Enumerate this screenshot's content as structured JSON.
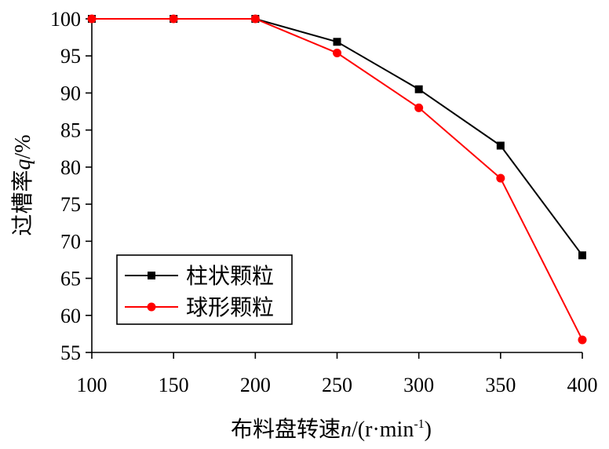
{
  "chart_data": {
    "type": "line",
    "title": "",
    "xlabel_main": "布料盘转速",
    "xlabel_var": "n",
    "xlabel_unit_open": "/(r·min",
    "xlabel_sup": "-1",
    "xlabel_unit_close": ")",
    "ylabel_main": "过槽率",
    "ylabel_var": "q",
    "ylabel_unit": "/%",
    "xlim": [
      100,
      400
    ],
    "ylim": [
      55,
      100
    ],
    "xticks": [
      100,
      150,
      200,
      250,
      300,
      350,
      400
    ],
    "yticks": [
      55,
      60,
      65,
      70,
      75,
      80,
      85,
      90,
      95,
      100
    ],
    "grid": false,
    "legend_position": "lower-left",
    "x": [
      100,
      150,
      200,
      250,
      300,
      350,
      400
    ],
    "series": [
      {
        "name": "柱状颗粒",
        "values": [
          100,
          100,
          100,
          96.9,
          90.5,
          82.9,
          68.1
        ],
        "color": "#000000",
        "marker": "square"
      },
      {
        "name": "球形颗粒",
        "values": [
          100,
          100,
          100,
          95.4,
          88.0,
          78.5,
          56.7
        ],
        "color": "#ff0000",
        "marker": "circle"
      }
    ]
  }
}
